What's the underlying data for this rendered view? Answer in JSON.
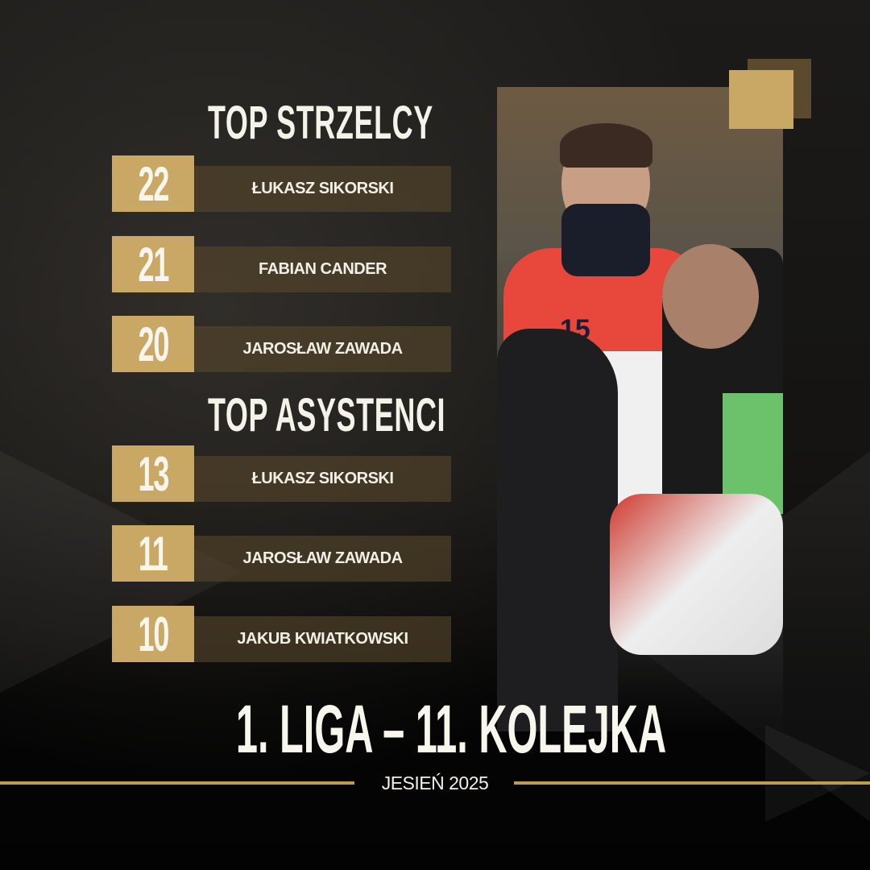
{
  "colors": {
    "gold": "#c9a866",
    "dark_gold": "#5b4a2d",
    "bar": "#58482c",
    "text": "#f4f3ea",
    "background": "#0b0a09"
  },
  "scorers": {
    "heading": "TOP STRZELCY",
    "items": [
      {
        "value": "22",
        "name": "ŁUKASZ SIKORSKI"
      },
      {
        "value": "21",
        "name": "FABIAN CANDER"
      },
      {
        "value": "20",
        "name": "JAROSŁAW ZAWADA"
      }
    ]
  },
  "assists": {
    "heading": "TOP ASYSTENCI",
    "items": [
      {
        "value": "13",
        "name": "ŁUKASZ SIKORSKI"
      },
      {
        "value": "11",
        "name": "JAROSŁAW ZAWADA"
      },
      {
        "value": "10",
        "name": "JAKUB KWIATKOWSKI"
      }
    ]
  },
  "photo": {
    "jersey_number": "15"
  },
  "footer": {
    "title": "1. LIGA – 11. KOLEJKA",
    "season": "JESIEŃ 2025"
  }
}
